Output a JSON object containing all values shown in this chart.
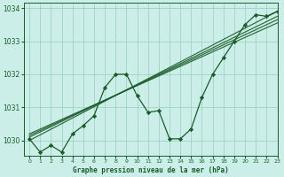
{
  "title": "Graphe pression niveau de la mer (hPa)",
  "bg_color": "#cceee8",
  "grid_color": "#99ccbb",
  "line_color": "#1a5c2a",
  "marker_color": "#1a5c2a",
  "xlim": [
    -0.5,
    23
  ],
  "ylim": [
    1029.55,
    1034.15
  ],
  "yticks": [
    1030,
    1031,
    1032,
    1033,
    1034
  ],
  "xticks": [
    0,
    1,
    2,
    3,
    4,
    5,
    6,
    7,
    8,
    9,
    10,
    11,
    12,
    13,
    14,
    15,
    16,
    17,
    18,
    19,
    20,
    21,
    22,
    23
  ],
  "zigzag": {
    "x": [
      0,
      1,
      2,
      3,
      4,
      5,
      6,
      7,
      8,
      9,
      10,
      11,
      12,
      13,
      14,
      15,
      16,
      17,
      18,
      19,
      20,
      21,
      22,
      23
    ],
    "y": [
      1030.05,
      1029.65,
      1029.85,
      1029.65,
      1030.2,
      1030.45,
      1030.75,
      1031.6,
      1032.0,
      1032.0,
      1031.35,
      1030.85,
      1030.9,
      1030.05,
      1030.05,
      1030.35,
      1031.3,
      1032.0,
      1032.5,
      1033.0,
      1033.5,
      1033.8,
      1033.75,
      1033.9
    ]
  },
  "straight_lines": [
    {
      "x": [
        0,
        23
      ],
      "y": [
        1030.0,
        1033.9
      ]
    },
    {
      "x": [
        0,
        23
      ],
      "y": [
        1030.1,
        1033.75
      ]
    },
    {
      "x": [
        0,
        23
      ],
      "y": [
        1030.15,
        1033.65
      ]
    },
    {
      "x": [
        0,
        23
      ],
      "y": [
        1030.2,
        1033.55
      ]
    }
  ]
}
